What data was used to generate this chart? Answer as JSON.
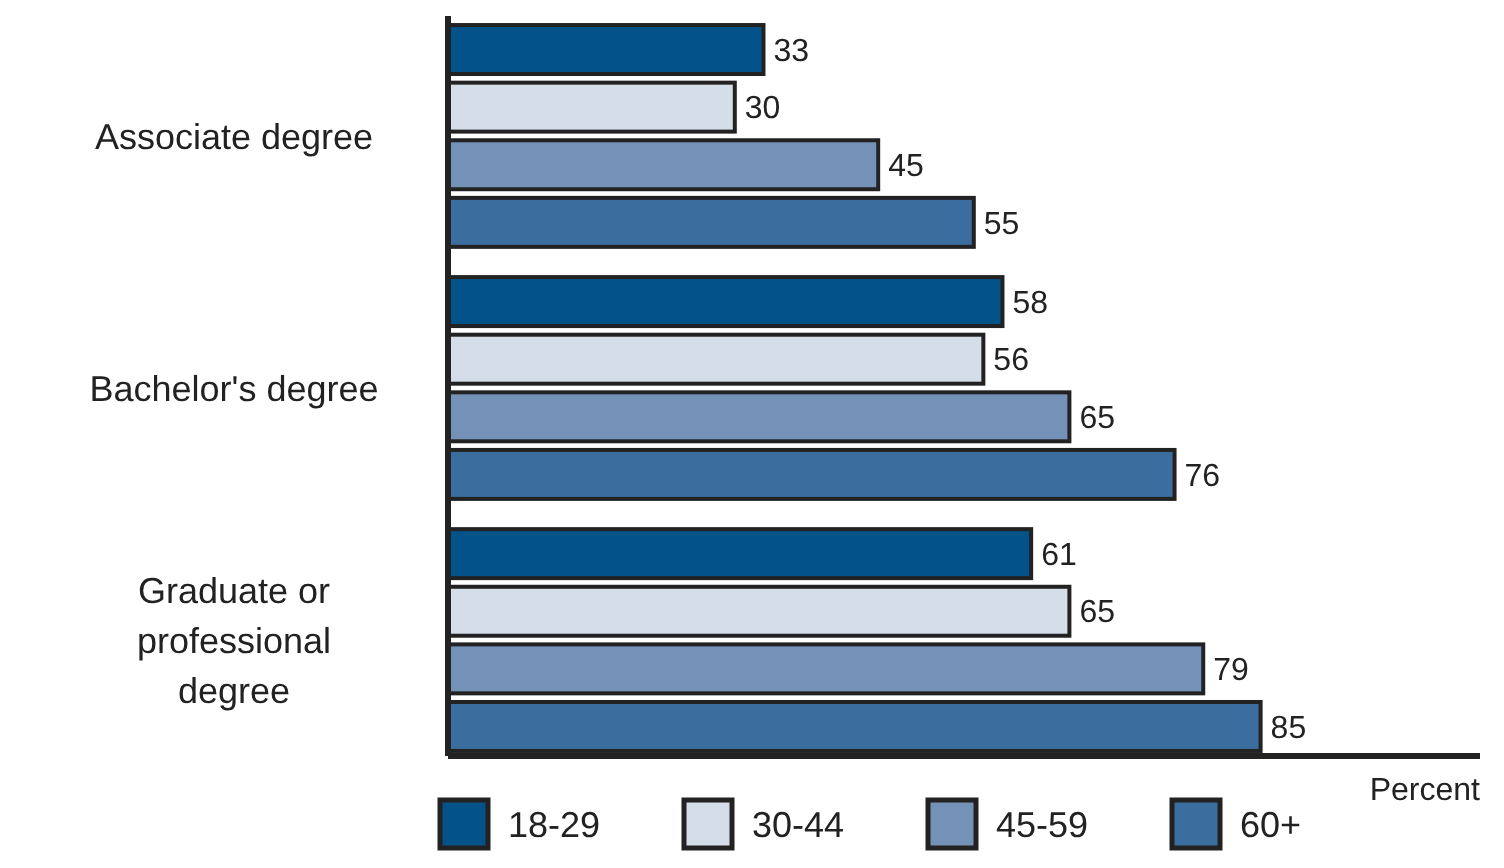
{
  "chart_data": {
    "type": "bar",
    "orientation": "horizontal",
    "xlabel": "Percent",
    "categories": [
      "Associate degree",
      "Bachelor's degree",
      "Graduate or professional degree"
    ],
    "series": [
      {
        "name": "18-29",
        "color": "#03538a",
        "values": [
          33,
          58,
          61
        ]
      },
      {
        "name": "30-44",
        "color": "#d5dde8",
        "values": [
          30,
          56,
          65
        ]
      },
      {
        "name": "45-59",
        "color": "#7491b8",
        "values": [
          45,
          65,
          79
        ]
      },
      {
        "name": "60+",
        "color": "#3b6d9e",
        "values": [
          55,
          76,
          85
        ]
      }
    ],
    "data_labels": true,
    "legend": "bottom"
  }
}
